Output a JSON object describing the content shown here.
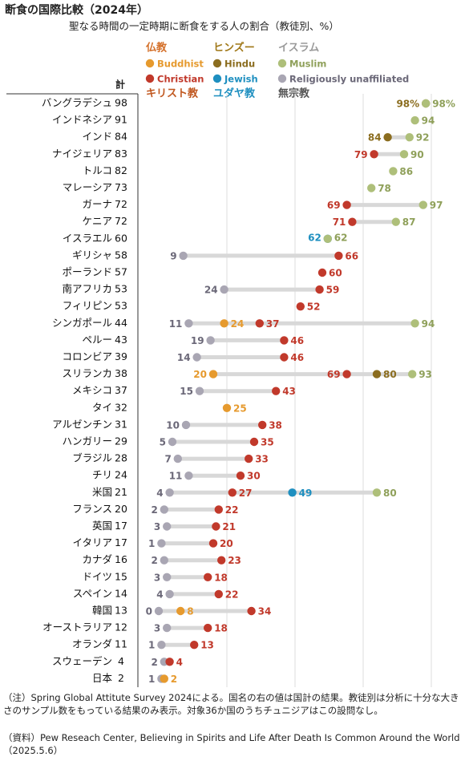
{
  "title": "断食の国際比較（2024年）",
  "subtitle": "聖なる時間の一定時期に断食をする人の割合（教徒別、%）",
  "total_header": "計",
  "legend": [
    {
      "key": "buddhist",
      "en": "Buddhist",
      "jp": "仏教",
      "jp_row": "top",
      "color": "#e69a2e"
    },
    {
      "key": "hindu",
      "en": "Hindu",
      "jp": "ヒンズー",
      "jp_row": "top",
      "color": "#8b6d1f"
    },
    {
      "key": "muslim",
      "en": "Muslim",
      "jp": "イスラム",
      "jp_row": "top",
      "color": "#aebf7a"
    },
    {
      "key": "christian",
      "en": "Christian",
      "jp": "キリスト教",
      "jp_row": "bottom",
      "color": "#c1392b"
    },
    {
      "key": "jewish",
      "en": "Jewish",
      "jp": "ユダヤ教",
      "jp_row": "bottom",
      "color": "#1e8fc0"
    },
    {
      "key": "unaffiliated",
      "en": "Religiously unaffiliated",
      "jp": "無宗教",
      "jp_row": "bottom",
      "color": "#a9a6b3"
    }
  ],
  "label_colors": {
    "buddhist": "#e69a2e",
    "hindu": "#8b6d1f",
    "muslim": "#8fa05a",
    "christian": "#c1392b",
    "jewish": "#1e8fc0",
    "unaffiliated": "#6b6878",
    "buddhist_jp": "#d4702a",
    "hindu_jp": "#a07818",
    "muslim_jp": "#9a9a9a",
    "christian_jp": "#c0571f",
    "jewish_jp": "#1e8fc0",
    "unaffiliated_jp": "#555555"
  },
  "chart_data": {
    "type": "scatter",
    "xlim": [
      0,
      100
    ],
    "gridlines": [
      25,
      50,
      75,
      100
    ],
    "rows": [
      {
        "country": "バングラデシュ",
        "total": 98,
        "values": {
          "hindu": 98,
          "muslim": 98
        },
        "labels": {
          "hindu": "98%",
          "muslim": "98%"
        }
      },
      {
        "country": "インドネシア",
        "total": 91,
        "values": {
          "muslim": 94
        }
      },
      {
        "country": "インド",
        "total": 84,
        "values": {
          "hindu": 84,
          "muslim": 92
        }
      },
      {
        "country": "ナイジェリア",
        "total": 83,
        "values": {
          "christian": 79,
          "muslim": 90
        }
      },
      {
        "country": "トルコ",
        "total": 82,
        "values": {
          "muslim": 86
        }
      },
      {
        "country": "マレーシア",
        "total": 73,
        "values": {
          "muslim": 78
        }
      },
      {
        "country": "ガーナ",
        "total": 72,
        "values": {
          "christian": 69,
          "muslim": 97
        }
      },
      {
        "country": "ケニア",
        "total": 72,
        "values": {
          "christian": 71,
          "muslim": 87
        }
      },
      {
        "country": "イスラエル",
        "total": 60,
        "values": {
          "jewish": 62,
          "muslim": 62
        }
      },
      {
        "country": "ギリシャ",
        "total": 58,
        "values": {
          "unaffiliated": 9,
          "christian": 66
        }
      },
      {
        "country": "ポーランド",
        "total": 57,
        "values": {
          "christian": 60
        }
      },
      {
        "country": "南アフリカ",
        "total": 53,
        "values": {
          "unaffiliated": 24,
          "christian": 59
        }
      },
      {
        "country": "フィリピン",
        "total": 53,
        "values": {
          "christian": 52
        }
      },
      {
        "country": "シンガポール",
        "total": 44,
        "values": {
          "unaffiliated": 11,
          "buddhist": 24,
          "christian": 37,
          "muslim": 94
        }
      },
      {
        "country": "ペルー",
        "total": 43,
        "values": {
          "unaffiliated": 19,
          "christian": 46
        }
      },
      {
        "country": "コロンビア",
        "total": 39,
        "values": {
          "unaffiliated": 14,
          "christian": 46
        }
      },
      {
        "country": "スリランカ",
        "total": 38,
        "values": {
          "buddhist": 20,
          "christian": 69,
          "hindu": 80,
          "muslim": 93
        }
      },
      {
        "country": "メキシコ",
        "total": 37,
        "values": {
          "unaffiliated": 15,
          "christian": 43
        }
      },
      {
        "country": "タイ",
        "total": 32,
        "values": {
          "buddhist": 25
        }
      },
      {
        "country": "アルゼンチン",
        "total": 31,
        "values": {
          "unaffiliated": 10,
          "christian": 38
        }
      },
      {
        "country": "ハンガリー",
        "total": 29,
        "values": {
          "unaffiliated": 5,
          "christian": 35
        }
      },
      {
        "country": "ブラジル",
        "total": 28,
        "values": {
          "unaffiliated": 7,
          "christian": 33
        }
      },
      {
        "country": "チリ",
        "total": 24,
        "values": {
          "unaffiliated": 11,
          "christian": 30
        }
      },
      {
        "country": "米国",
        "total": 21,
        "values": {
          "unaffiliated": 4,
          "christian": 27,
          "jewish": 49,
          "muslim": 80
        }
      },
      {
        "country": "フランス",
        "total": 20,
        "values": {
          "unaffiliated": 2,
          "christian": 22
        }
      },
      {
        "country": "英国",
        "total": 17,
        "values": {
          "unaffiliated": 3,
          "christian": 21
        }
      },
      {
        "country": "イタリア",
        "total": 17,
        "values": {
          "unaffiliated": 1,
          "christian": 20
        }
      },
      {
        "country": "カナダ",
        "total": 16,
        "values": {
          "unaffiliated": 2,
          "christian": 23
        }
      },
      {
        "country": "ドイツ",
        "total": 15,
        "values": {
          "unaffiliated": 3,
          "christian": 18
        }
      },
      {
        "country": "スペイン",
        "total": 14,
        "values": {
          "unaffiliated": 4,
          "christian": 22
        }
      },
      {
        "country": "韓国",
        "total": 13,
        "values": {
          "unaffiliated": 0,
          "buddhist": 8,
          "christian": 34
        }
      },
      {
        "country": "オーストラリア",
        "total": 12,
        "values": {
          "unaffiliated": 3,
          "christian": 18
        }
      },
      {
        "country": "オランダ",
        "total": 11,
        "values": {
          "unaffiliated": 1,
          "christian": 13
        }
      },
      {
        "country": "スウェーデン",
        "total": 4,
        "values": {
          "unaffiliated": 2,
          "christian": 4
        }
      },
      {
        "country": "日本",
        "total": 2,
        "values": {
          "unaffiliated": 1,
          "buddhist": 2
        }
      }
    ]
  },
  "notes": {
    "note1": "（注）Spring Global Attitute Survey 2024による。国名の右の値は国計の結果。教徒別は分析に十分な大きさのサンプル数をもっている結果のみ表示。対象36か国のうちチュニジアはこの設問なし。",
    "note2": "（資料）Pew Reseach Center, Believing in Spirits and Life After Death Is Common Around the World（2025.5.6）"
  }
}
